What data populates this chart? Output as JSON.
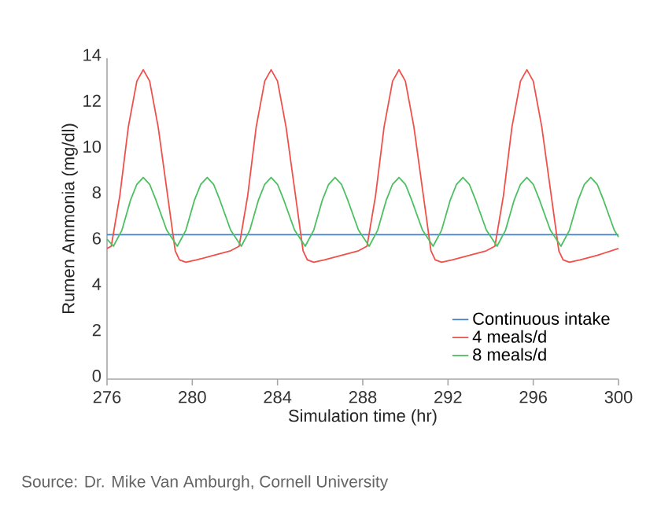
{
  "chart_data": {
    "type": "line",
    "xlabel": "Simulation time (hr)",
    "ylabel": "Rumen Ammonia (mg/dl)",
    "annotations": [
      "Source: Dr. Mike Van Amburgh, Cornell University"
    ],
    "xlim": [
      276,
      300
    ],
    "xticks": [
      276,
      280,
      284,
      288,
      292,
      296,
      300
    ],
    "ylim": [
      0,
      14
    ],
    "yticks": [
      0,
      2,
      4,
      6,
      8,
      10,
      12,
      14
    ],
    "grid": false,
    "legend": "bottom right",
    "marker": "none",
    "line_style": "solid",
    "series": [
      {
        "name": "Continuous intake",
        "color": "#4a7ebb",
        "x": [
          276,
          300
        ],
        "values": [
          6.3,
          6.3
        ]
      },
      {
        "name": "4 meals/d",
        "color": "#f0504a",
        "x": [
          276,
          276.2,
          276.6,
          277.0,
          277.4,
          277.7,
          278.0,
          278.4,
          278.8,
          279.2,
          279.4,
          279.7,
          280.2,
          281.0,
          281.8,
          282.2,
          282.6,
          283.0,
          283.4,
          283.7,
          284.0,
          284.4,
          284.8,
          285.2,
          285.4,
          285.7,
          286.2,
          287.0,
          287.8,
          288.2,
          288.6,
          289.0,
          289.4,
          289.7,
          290.0,
          290.4,
          290.8,
          291.2,
          291.4,
          291.7,
          292.2,
          293.0,
          293.8,
          294.2,
          294.6,
          295.0,
          295.4,
          295.7,
          296.0,
          296.4,
          296.8,
          297.2,
          297.4,
          297.7,
          298.2,
          299.0,
          300
        ],
        "values": [
          5.7,
          5.8,
          8.0,
          11.0,
          13.0,
          13.5,
          13.0,
          11.0,
          8.3,
          5.6,
          5.2,
          5.1,
          5.2,
          5.4,
          5.6,
          5.8,
          8.0,
          11.0,
          13.0,
          13.5,
          13.0,
          11.0,
          8.3,
          5.6,
          5.2,
          5.1,
          5.2,
          5.4,
          5.6,
          5.8,
          8.0,
          11.0,
          13.0,
          13.5,
          13.0,
          11.0,
          8.3,
          5.6,
          5.2,
          5.1,
          5.2,
          5.4,
          5.6,
          5.8,
          8.0,
          11.0,
          13.0,
          13.5,
          13.0,
          11.0,
          8.3,
          5.6,
          5.2,
          5.1,
          5.2,
          5.4,
          5.7
        ]
      },
      {
        "name": "8 meals/d",
        "color": "#4cc060",
        "x": [
          276,
          276.3,
          276.7,
          277.1,
          277.4,
          277.7,
          278.0,
          278.3,
          278.8,
          279.3,
          279.7,
          280.1,
          280.4,
          280.7,
          281.0,
          281.3,
          281.8,
          282.3,
          282.7,
          283.1,
          283.4,
          283.7,
          284.0,
          284.3,
          284.8,
          285.3,
          285.7,
          286.1,
          286.4,
          286.7,
          287.0,
          287.3,
          287.8,
          288.3,
          288.7,
          289.1,
          289.4,
          289.7,
          290.0,
          290.3,
          290.8,
          291.3,
          291.7,
          292.1,
          292.4,
          292.7,
          293.0,
          293.3,
          293.8,
          294.3,
          294.7,
          295.1,
          295.4,
          295.7,
          296.0,
          296.3,
          296.8,
          297.3,
          297.7,
          298.1,
          298.4,
          298.7,
          299.0,
          299.3,
          299.8,
          300
        ],
        "values": [
          6.1,
          5.8,
          6.5,
          7.8,
          8.5,
          8.8,
          8.5,
          7.8,
          6.5,
          5.8,
          6.5,
          7.8,
          8.5,
          8.8,
          8.5,
          7.8,
          6.5,
          5.8,
          6.5,
          7.8,
          8.5,
          8.8,
          8.5,
          7.8,
          6.5,
          5.8,
          6.5,
          7.8,
          8.5,
          8.8,
          8.5,
          7.8,
          6.5,
          5.8,
          6.5,
          7.8,
          8.5,
          8.8,
          8.5,
          7.8,
          6.5,
          5.8,
          6.5,
          7.8,
          8.5,
          8.8,
          8.5,
          7.8,
          6.5,
          5.8,
          6.5,
          7.8,
          8.5,
          8.8,
          8.5,
          7.8,
          6.5,
          5.8,
          6.5,
          7.8,
          8.5,
          8.8,
          8.5,
          7.8,
          6.5,
          6.2
        ]
      }
    ]
  }
}
